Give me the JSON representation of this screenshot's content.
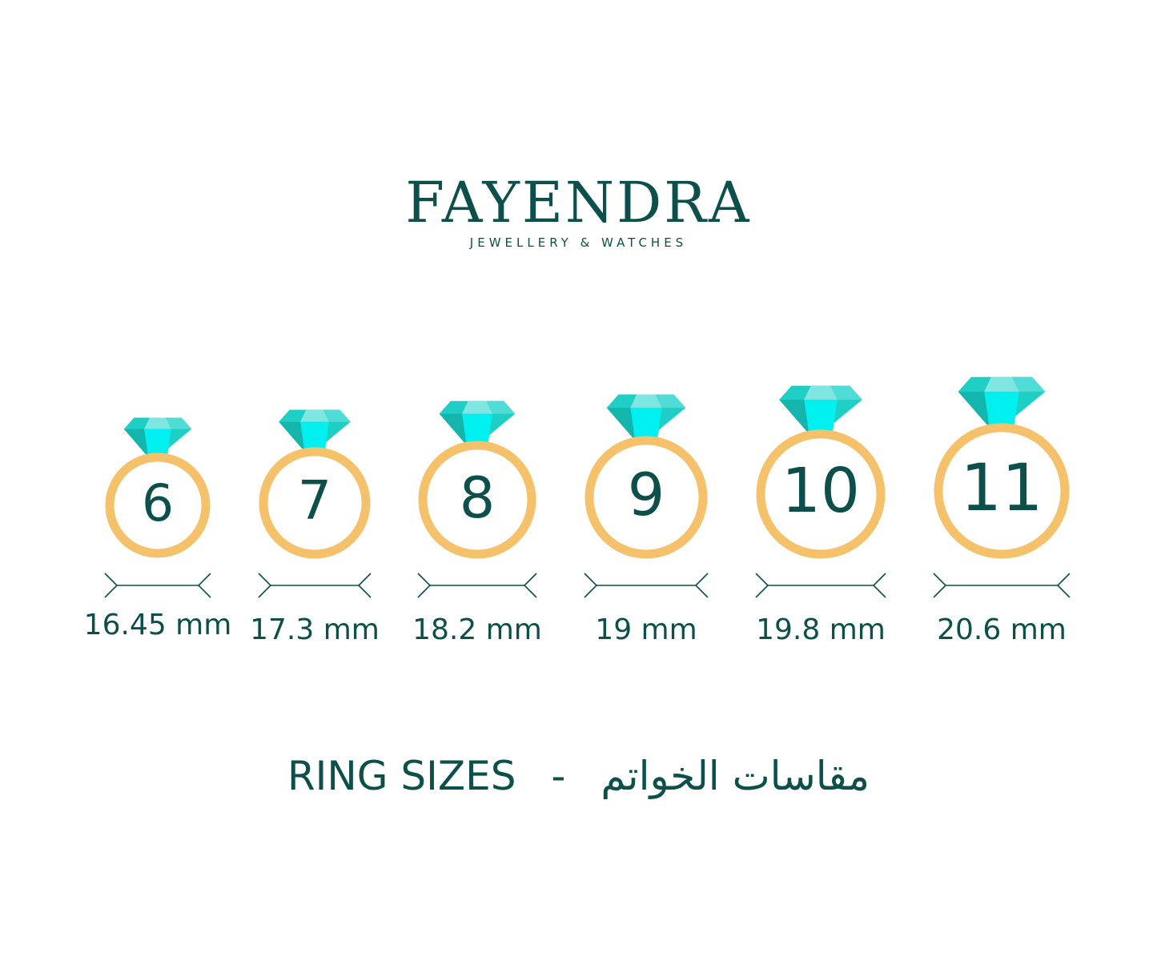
{
  "brand": {
    "name": "FAYENDRA",
    "tagline": "JEWELLERY & WATCHES"
  },
  "colors": {
    "text": "#0d4f4a",
    "ring": "#f5c26b",
    "gem_light": "#7fe6e2",
    "gem_mid": "#1fcfc6",
    "gem_bright": "#00f0f0",
    "gem_dark": "#13b5ad"
  },
  "rings": [
    {
      "size": "6",
      "diameter": "16.45 mm"
    },
    {
      "size": "7",
      "diameter": "17.3 mm"
    },
    {
      "size": "8",
      "diameter": "18.2 mm"
    },
    {
      "size": "9",
      "diameter": "19 mm"
    },
    {
      "size": "10",
      "diameter": "19.8 mm"
    },
    {
      "size": "11",
      "diameter": "20.6 mm"
    }
  ],
  "footer": {
    "title_en": "RING SIZES",
    "separator": "-",
    "title_ar": "مقاسات الخواتم"
  }
}
